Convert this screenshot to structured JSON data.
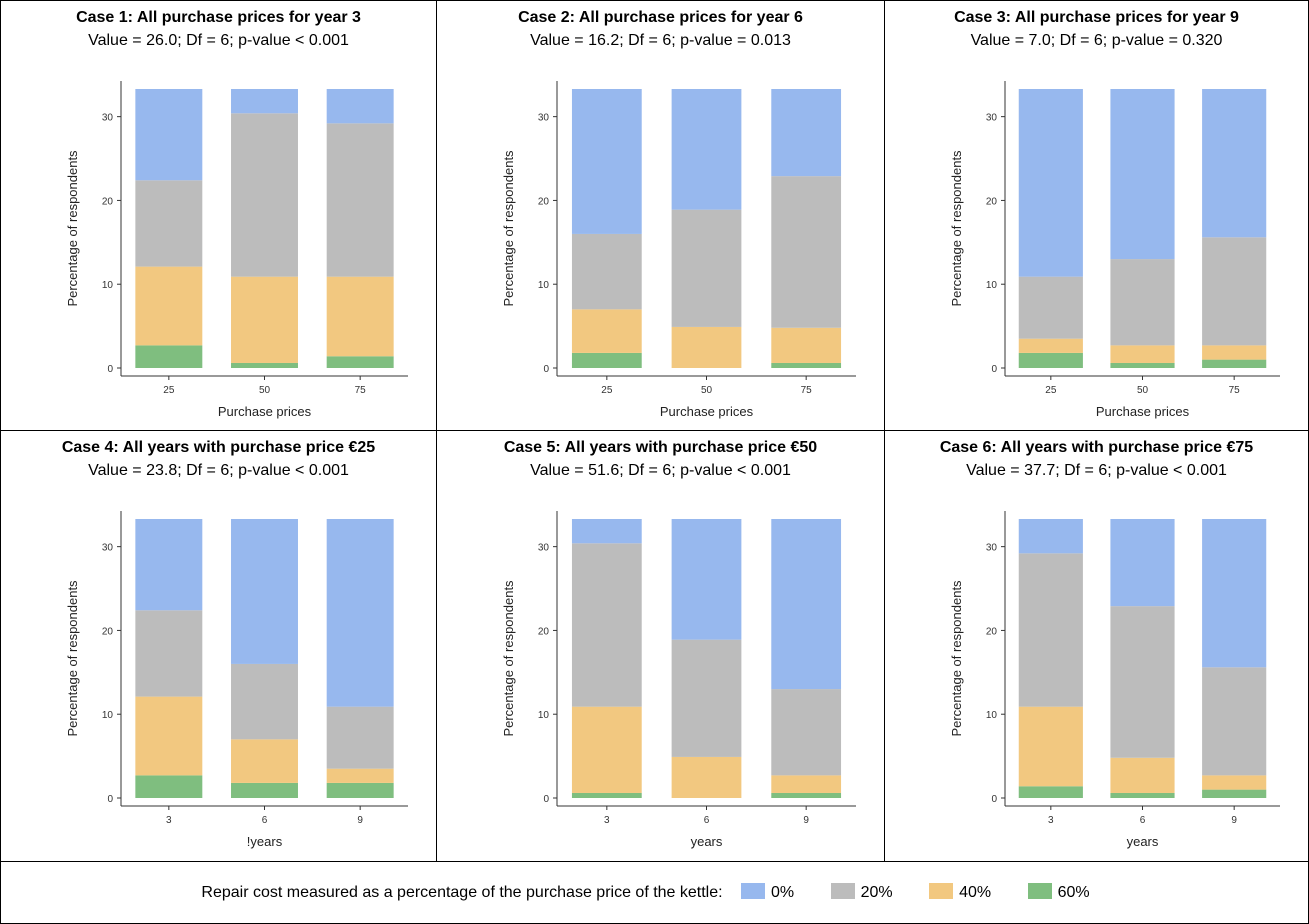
{
  "colors": {
    "0%": "#97b8ee",
    "20%": "#bcbcbc",
    "40%": "#f2c880",
    "60%": "#7fbe7f"
  },
  "chart_data": [
    {
      "type": "bar",
      "stacked": true,
      "title": "Case 1: All purchase prices for year 3",
      "stats": "Value = 26.0; Df = 6; p-value < 0.001",
      "xlabel": "Purchase prices",
      "ylabel": "Percentage of respondents",
      "categories": [
        "25",
        "50",
        "75"
      ],
      "yticks": [
        "0",
        "10",
        "20",
        "30"
      ],
      "ylim": [
        0,
        33.3
      ],
      "series": [
        {
          "name": "60%",
          "values": [
            2.7,
            0.6,
            1.4
          ]
        },
        {
          "name": "40%",
          "values": [
            9.4,
            10.3,
            9.5
          ]
        },
        {
          "name": "20%",
          "values": [
            10.3,
            19.5,
            18.3
          ]
        },
        {
          "name": "0%",
          "values": [
            10.9,
            2.9,
            4.1
          ]
        }
      ]
    },
    {
      "type": "bar",
      "stacked": true,
      "title": "Case 2: All purchase prices for year 6",
      "stats": "Value = 16.2; Df = 6; p-value = 0.013",
      "xlabel": "Purchase prices",
      "ylabel": "Percentage of respondents",
      "categories": [
        "25",
        "50",
        "75"
      ],
      "yticks": [
        "0",
        "10",
        "20",
        "30"
      ],
      "ylim": [
        0,
        33.3
      ],
      "series": [
        {
          "name": "60%",
          "values": [
            1.8,
            0.0,
            0.6
          ]
        },
        {
          "name": "40%",
          "values": [
            5.2,
            4.9,
            4.2
          ]
        },
        {
          "name": "20%",
          "values": [
            9.0,
            14.0,
            18.1
          ]
        },
        {
          "name": "0%",
          "values": [
            17.3,
            14.4,
            10.4
          ]
        }
      ]
    },
    {
      "type": "bar",
      "stacked": true,
      "title": "Case 3: All purchase prices for year 9",
      "stats": "Value = 7.0; Df = 6; p-value = 0.320",
      "xlabel": "Purchase prices",
      "ylabel": "Percentage of respondents",
      "categories": [
        "25",
        "50",
        "75"
      ],
      "yticks": [
        "0",
        "10",
        "20",
        "30"
      ],
      "ylim": [
        0,
        33.3
      ],
      "series": [
        {
          "name": "60%",
          "values": [
            1.8,
            0.6,
            1.0
          ]
        },
        {
          "name": "40%",
          "values": [
            1.7,
            2.1,
            1.7
          ]
        },
        {
          "name": "20%",
          "values": [
            7.4,
            10.3,
            12.9
          ]
        },
        {
          "name": "0%",
          "values": [
            22.4,
            20.3,
            17.7
          ]
        }
      ]
    },
    {
      "type": "bar",
      "stacked": true,
      "title": "Case 4: All years with purchase price €25",
      "stats": "Value = 23.8; Df = 6; p-value < 0.001",
      "xlabel": "!years",
      "ylabel": "Percentage of respondents",
      "categories": [
        "3",
        "6",
        "9"
      ],
      "yticks": [
        "0",
        "10",
        "20",
        "30"
      ],
      "ylim": [
        0,
        33.3
      ],
      "series": [
        {
          "name": "60%",
          "values": [
            2.7,
            1.8,
            1.8
          ]
        },
        {
          "name": "40%",
          "values": [
            9.4,
            5.2,
            1.7
          ]
        },
        {
          "name": "20%",
          "values": [
            10.3,
            9.0,
            7.4
          ]
        },
        {
          "name": "0%",
          "values": [
            10.9,
            17.3,
            22.4
          ]
        }
      ]
    },
    {
      "type": "bar",
      "stacked": true,
      "title": "Case 5: All years with purchase price €50",
      "stats": "Value = 51.6; Df = 6; p-value < 0.001",
      "xlabel": "years",
      "ylabel": "Percentage of respondents",
      "categories": [
        "3",
        "6",
        "9"
      ],
      "yticks": [
        "0",
        "10",
        "20",
        "30"
      ],
      "ylim": [
        0,
        33.3
      ],
      "series": [
        {
          "name": "60%",
          "values": [
            0.6,
            0.0,
            0.6
          ]
        },
        {
          "name": "40%",
          "values": [
            10.3,
            4.9,
            2.1
          ]
        },
        {
          "name": "20%",
          "values": [
            19.5,
            14.0,
            10.3
          ]
        },
        {
          "name": "0%",
          "values": [
            2.9,
            14.4,
            20.3
          ]
        }
      ]
    },
    {
      "type": "bar",
      "stacked": true,
      "title": "Case 6: All years with purchase price €75",
      "stats": "Value = 37.7; Df = 6; p-value < 0.001",
      "xlabel": "years",
      "ylabel": "Percentage of respondents",
      "categories": [
        "3",
        "6",
        "9"
      ],
      "yticks": [
        "0",
        "10",
        "20",
        "30"
      ],
      "ylim": [
        0,
        33.3
      ],
      "series": [
        {
          "name": "60%",
          "values": [
            1.4,
            0.6,
            1.0
          ]
        },
        {
          "name": "40%",
          "values": [
            9.5,
            4.2,
            1.7
          ]
        },
        {
          "name": "20%",
          "values": [
            18.3,
            18.1,
            12.9
          ]
        },
        {
          "name": "0%",
          "values": [
            4.1,
            10.4,
            17.7
          ]
        }
      ]
    }
  ],
  "legend": {
    "caption": "Repair cost measured as a percentage of the purchase price of the kettle:",
    "items": [
      "0%",
      "20%",
      "40%",
      "60%"
    ]
  }
}
